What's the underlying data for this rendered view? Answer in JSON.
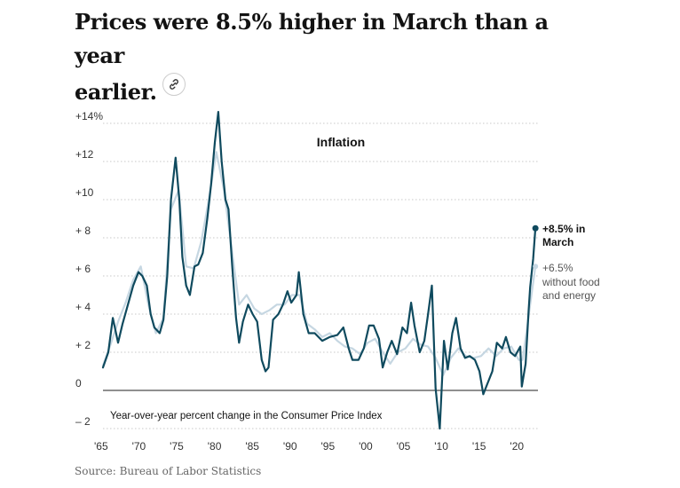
{
  "headline": {
    "line1": "Prices were 8.5% higher in March than a year",
    "line2": "earlier."
  },
  "link_icon": "link-icon",
  "source": "Source: Bureau of Labor Statistics",
  "colors": {
    "headline_series": "#0f4a5e",
    "core_series": "#c6d7e2",
    "grid": "#c8c8c8",
    "zero_line": "#222222",
    "text": "#333333"
  },
  "chart_data": {
    "type": "line",
    "title": "Inflation",
    "subtitle": "Year-over-year percent change in the Consumer Price Index",
    "xlabel": "",
    "ylabel": "",
    "xlim": [
      1965,
      2022.3
    ],
    "ylim": [
      -2,
      14
    ],
    "y_ticks": [
      {
        "value": 14,
        "label": "+14%"
      },
      {
        "value": 12,
        "label": "+12"
      },
      {
        "value": 10,
        "label": "+10"
      },
      {
        "value": 8,
        "label": "+ 8"
      },
      {
        "value": 6,
        "label": "+ 6"
      },
      {
        "value": 4,
        "label": "+ 4"
      },
      {
        "value": 2,
        "label": "+ 2"
      },
      {
        "value": 0,
        "label": "0"
      },
      {
        "value": -2,
        "label": "– 2"
      }
    ],
    "x_ticks": [
      {
        "value": 1965,
        "label": "'65"
      },
      {
        "value": 1970,
        "label": "'70"
      },
      {
        "value": 1975,
        "label": "'75"
      },
      {
        "value": 1980,
        "label": "'80"
      },
      {
        "value": 1985,
        "label": "'85"
      },
      {
        "value": 1990,
        "label": "'90"
      },
      {
        "value": 1995,
        "label": "'95"
      },
      {
        "value": 2000,
        "label": "'00"
      },
      {
        "value": 2005,
        "label": "'05"
      },
      {
        "value": 2010,
        "label": "'10"
      },
      {
        "value": 2015,
        "label": "'15"
      },
      {
        "value": 2020,
        "label": "'20"
      }
    ],
    "grid": true,
    "series": [
      {
        "name": "Core CPI (without food and energy)",
        "x": [
          1965,
          1966,
          1967,
          1968,
          1969,
          1970,
          1971,
          1972,
          1973,
          1974,
          1975,
          1976,
          1977,
          1978,
          1979,
          1980,
          1981,
          1982,
          1983,
          1984,
          1985,
          1986,
          1987,
          1988,
          1989,
          1990,
          1991,
          1992,
          1993,
          1994,
          1995,
          1996,
          1997,
          1998,
          1999,
          2000,
          2001,
          2002,
          2003,
          2004,
          2005,
          2006,
          2007,
          2008,
          2009,
          2010,
          2011,
          2012,
          2013,
          2014,
          2015,
          2016,
          2017,
          2018,
          2019,
          2020,
          2020.5,
          2021,
          2021.5,
          2022.2
        ],
        "values": [
          1.3,
          2.4,
          3.6,
          4.6,
          5.8,
          6.5,
          4.5,
          3.0,
          3.8,
          9.5,
          10.5,
          6.5,
          6.4,
          7.8,
          10.0,
          12.5,
          10.5,
          7.5,
          4.5,
          5.0,
          4.3,
          4.0,
          4.2,
          4.5,
          4.5,
          5.0,
          5.0,
          3.5,
          3.2,
          2.8,
          3.0,
          2.6,
          2.3,
          2.2,
          1.9,
          2.5,
          2.7,
          2.0,
          1.4,
          2.0,
          2.2,
          2.7,
          2.4,
          2.3,
          1.7,
          0.8,
          1.7,
          2.2,
          1.8,
          1.7,
          1.8,
          2.2,
          1.8,
          2.2,
          2.3,
          1.6,
          1.6,
          3.0,
          4.5,
          6.5
        ]
      },
      {
        "name": "CPI",
        "x": [
          1965,
          1965.7,
          1966.3,
          1967,
          1967.6,
          1968.3,
          1969,
          1969.7,
          1970.2,
          1970.8,
          1971.3,
          1971.8,
          1972.5,
          1973,
          1973.5,
          1974,
          1974.6,
          1975.1,
          1975.5,
          1976,
          1976.5,
          1977.1,
          1977.6,
          1978.2,
          1978.8,
          1979.3,
          1979.8,
          1980.25,
          1980.7,
          1981.2,
          1981.6,
          1982.1,
          1982.6,
          1983,
          1983.5,
          1984.2,
          1984.8,
          1985.4,
          1986,
          1986.5,
          1986.9,
          1987.5,
          1988.2,
          1988.8,
          1989.4,
          1989.9,
          1990.6,
          1990.9,
          1991.5,
          1992.2,
          1993,
          1994,
          1995,
          1996,
          1996.8,
          1997.5,
          1998,
          1998.8,
          1999.5,
          2000.2,
          2000.8,
          2001.5,
          2002,
          2002.6,
          2003.2,
          2003.9,
          2004.6,
          2005.2,
          2005.75,
          2006.2,
          2006.9,
          2007.5,
          2008,
          2008.5,
          2009.0,
          2009.55,
          2010.1,
          2010.6,
          2011.2,
          2011.7,
          2012.3,
          2012.9,
          2013.5,
          2014.2,
          2014.8,
          2015.3,
          2015.8,
          2016.5,
          2017.1,
          2017.8,
          2018.3,
          2018.9,
          2019.5,
          2020.2,
          2020.4,
          2020.9,
          2021.3,
          2021.5,
          2021.9,
          2022.2
        ],
        "values": [
          1.2,
          2.0,
          3.8,
          2.5,
          3.5,
          4.5,
          5.5,
          6.2,
          6.0,
          5.5,
          4.0,
          3.3,
          3.0,
          3.7,
          6.0,
          10.0,
          12.2,
          10.0,
          7.0,
          5.5,
          5.0,
          6.5,
          6.6,
          7.2,
          9.0,
          10.8,
          13.0,
          14.6,
          12.0,
          10.0,
          9.5,
          6.5,
          3.8,
          2.5,
          3.6,
          4.5,
          4.0,
          3.6,
          1.6,
          1.0,
          1.2,
          3.7,
          4.0,
          4.5,
          5.2,
          4.6,
          5.0,
          6.2,
          4.0,
          3.0,
          3.0,
          2.6,
          2.8,
          2.9,
          3.3,
          2.2,
          1.6,
          1.6,
          2.2,
          3.4,
          3.4,
          2.7,
          1.2,
          2.0,
          2.6,
          1.9,
          3.3,
          3.0,
          4.6,
          3.4,
          2.0,
          2.6,
          4.0,
          5.5,
          0.1,
          -2.0,
          2.6,
          1.1,
          3.0,
          3.8,
          2.2,
          1.7,
          1.8,
          1.6,
          1.0,
          -0.2,
          0.3,
          1.0,
          2.5,
          2.2,
          2.8,
          2.0,
          1.8,
          2.3,
          0.2,
          1.4,
          4.2,
          5.4,
          6.9,
          8.5
        ]
      }
    ],
    "annotations": [
      {
        "series": "CPI",
        "value_label": "+8.5% in",
        "label_line2": "March",
        "value": 8.5
      },
      {
        "series": "Core CPI (without food and energy)",
        "value_label": "+6.5%",
        "label_line2": "without food",
        "label_line3": "and energy",
        "value": 6.5
      }
    ]
  }
}
